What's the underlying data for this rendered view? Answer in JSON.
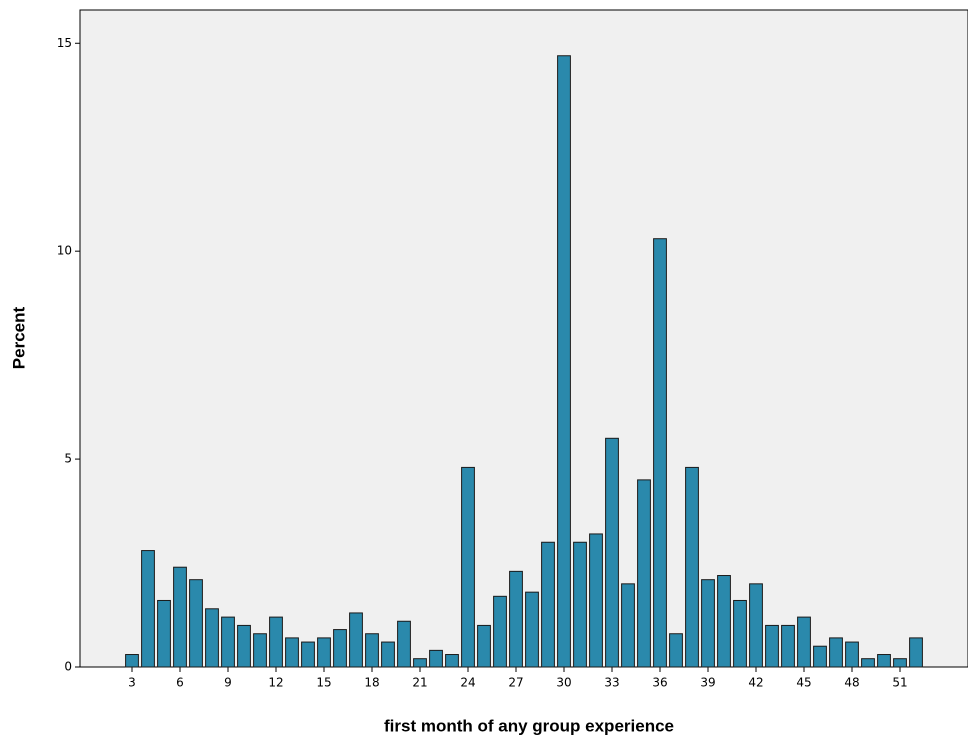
{
  "chart_data": {
    "type": "bar",
    "x_label": "first month of any group experience",
    "y_label": "Percent",
    "x": [
      3,
      4,
      5,
      6,
      7,
      8,
      9,
      10,
      11,
      12,
      13,
      14,
      15,
      16,
      17,
      18,
      19,
      20,
      21,
      22,
      23,
      24,
      25,
      26,
      27,
      28,
      29,
      30,
      31,
      32,
      33,
      34,
      35,
      36,
      37,
      38,
      39,
      40,
      41,
      42,
      43,
      44,
      45,
      46,
      47,
      48,
      49,
      50,
      51,
      52
    ],
    "values": [
      0.3,
      2.8,
      1.6,
      2.4,
      2.1,
      1.4,
      1.2,
      1.0,
      0.8,
      1.2,
      0.7,
      0.6,
      0.7,
      0.9,
      1.3,
      0.8,
      0.6,
      1.1,
      0.2,
      0.4,
      0.3,
      4.8,
      1.0,
      1.7,
      2.3,
      1.8,
      3.0,
      14.7,
      3.0,
      3.2,
      5.5,
      2.0,
      4.5,
      10.3,
      0.8,
      4.8,
      2.1,
      2.2,
      1.6,
      2.0,
      1.0,
      1.0,
      1.2,
      0.5,
      0.7,
      0.6,
      0.2,
      0.3,
      0.2,
      0.7
    ],
    "color": "#2a89ac",
    "xlim": [
      -0.25,
      55.25
    ],
    "xticks": [
      3,
      6,
      9,
      12,
      15,
      18,
      21,
      24,
      27,
      30,
      33,
      36,
      39,
      42,
      45,
      48,
      51
    ],
    "ylim": [
      0,
      15.8
    ],
    "yticks": [
      0,
      5,
      10,
      15
    ]
  }
}
